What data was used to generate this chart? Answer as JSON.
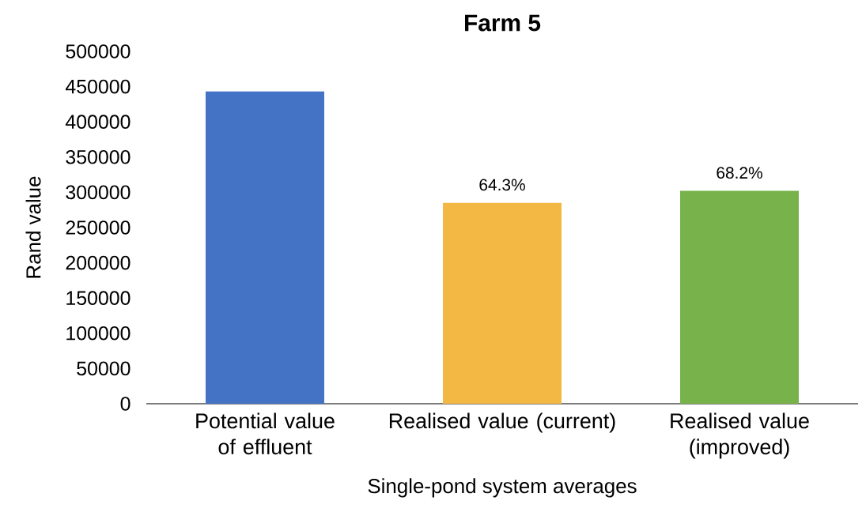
{
  "chart_data": {
    "type": "bar",
    "title": "Farm 5",
    "xlabel": "Single-pond system averages",
    "ylabel": "Rand value",
    "categories": [
      "Potential value of effluent",
      "Realised value (current)",
      "Realised value (improved)"
    ],
    "values": [
      443000,
      285000,
      302000
    ],
    "colors": [
      "#4472c4",
      "#f2b843",
      "#77b24a"
    ],
    "annotations": [
      {
        "text": "64.3%",
        "x": "Realised value (current)",
        "y": 285000
      },
      {
        "text": "68.2%",
        "x": "Realised value (improved)",
        "y": 302000
      }
    ],
    "ylim": [
      0,
      500000
    ],
    "yticks": [
      0,
      50000,
      100000,
      150000,
      200000,
      250000,
      300000,
      350000,
      400000,
      450000,
      500000
    ],
    "grid": false
  }
}
